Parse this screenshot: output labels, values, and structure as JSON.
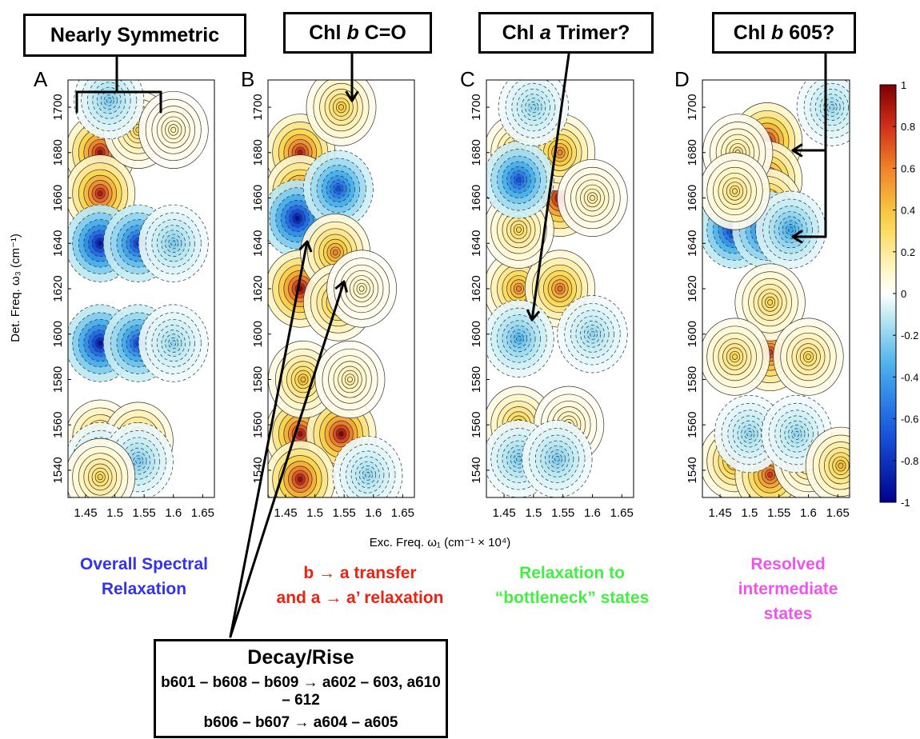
{
  "callouts": [
    {
      "id": "nearly",
      "text": "Nearly Symmetric"
    },
    {
      "id": "chlb_co",
      "pre": "Chl ",
      "it": "b",
      "post": " C=O"
    },
    {
      "id": "trimer",
      "pre": "Chl ",
      "it": "a",
      "post": " Trimer?"
    },
    {
      "id": "chlb605",
      "pre": "Chl ",
      "it": "b",
      "post": " 605?"
    }
  ],
  "captions": [
    {
      "text": "Overall Spectral\nRelaxation",
      "color": "#3333ee"
    },
    {
      "text": "b → a transfer\nand a → a’ relaxation",
      "color": "#ee2211"
    },
    {
      "text": "Relaxation to\n“bottleneck” states",
      "color": "#44ee44"
    },
    {
      "text": "Resolved\nintermediate\nstates",
      "color": "#ee55ee"
    }
  ],
  "decay_box": {
    "title": "Decay/Rise",
    "line1": "b601 – b608 – b609 → a602 – 603, a610 – 612",
    "line2": "b606 – b607 → a604 – a605"
  },
  "chart_data": {
    "type": "heatmap",
    "panels": [
      {
        "label": "A",
        "peaks": [
          [
            1.475,
            1680,
            0.95
          ],
          [
            1.475,
            1662,
            0.9
          ],
          [
            1.475,
            1640,
            -0.95
          ],
          [
            1.54,
            1640,
            -0.8
          ],
          [
            1.475,
            1596,
            -0.95
          ],
          [
            1.54,
            1596,
            -0.75
          ],
          [
            1.475,
            1554,
            0.5
          ],
          [
            1.54,
            1553,
            0.55
          ],
          [
            1.54,
            1690,
            0.35
          ],
          [
            1.49,
            1703,
            -0.25
          ],
          [
            1.475,
            1544,
            -0.25
          ],
          [
            1.54,
            1544,
            -0.25
          ],
          [
            1.475,
            1537,
            0.35
          ],
          [
            1.6,
            1640,
            -0.25
          ],
          [
            1.6,
            1596,
            -0.2
          ],
          [
            1.6,
            1690,
            0.15
          ]
        ]
      },
      {
        "label": "B",
        "peaks": [
          [
            1.475,
            1680,
            0.9
          ],
          [
            1.475,
            1662,
            0.85
          ],
          [
            1.47,
            1651,
            -0.95
          ],
          [
            1.54,
            1664,
            -0.7
          ],
          [
            1.475,
            1620,
            1.0
          ],
          [
            1.535,
            1636,
            0.6
          ],
          [
            1.54,
            1614,
            0.55
          ],
          [
            1.475,
            1556,
            0.95
          ],
          [
            1.545,
            1556,
            1.0
          ],
          [
            1.475,
            1536,
            0.95
          ],
          [
            1.545,
            1700,
            0.4
          ],
          [
            1.48,
            1580,
            0.45
          ],
          [
            1.56,
            1580,
            0.2
          ],
          [
            1.58,
            1620,
            0.15
          ],
          [
            1.59,
            1538,
            -0.2
          ]
        ]
      },
      {
        "label": "C",
        "peaks": [
          [
            1.545,
            1660,
            1.0
          ],
          [
            1.475,
            1680,
            0.4
          ],
          [
            1.545,
            1680,
            0.6
          ],
          [
            1.475,
            1620,
            0.6
          ],
          [
            1.545,
            1620,
            0.65
          ],
          [
            1.475,
            1646,
            0.35
          ],
          [
            1.475,
            1598,
            -0.35
          ],
          [
            1.475,
            1668,
            -0.7
          ],
          [
            1.475,
            1560,
            0.45
          ],
          [
            1.56,
            1560,
            0.2
          ],
          [
            1.475,
            1545,
            -0.25
          ],
          [
            1.54,
            1545,
            -0.25
          ],
          [
            1.6,
            1600,
            -0.2
          ],
          [
            1.5,
            1700,
            -0.2
          ],
          [
            1.6,
            1660,
            0.2
          ]
        ]
      },
      {
        "label": "D",
        "peaks": [
          [
            1.53,
            1685,
            0.9
          ],
          [
            1.53,
            1668,
            0.8
          ],
          [
            1.53,
            1656,
            0.75
          ],
          [
            1.475,
            1646,
            -0.9
          ],
          [
            1.53,
            1646,
            -0.8
          ],
          [
            1.57,
            1646,
            -0.4
          ],
          [
            1.535,
            1592,
            0.8
          ],
          [
            1.535,
            1614,
            0.35
          ],
          [
            1.475,
            1590,
            0.35
          ],
          [
            1.6,
            1590,
            0.35
          ],
          [
            1.475,
            1544,
            0.55
          ],
          [
            1.535,
            1538,
            0.8
          ],
          [
            1.6,
            1544,
            0.35
          ],
          [
            1.48,
            1680,
            0.25
          ],
          [
            1.475,
            1663,
            0.3
          ],
          [
            1.5,
            1556,
            -0.2
          ],
          [
            1.58,
            1556,
            -0.2
          ],
          [
            1.655,
            1542,
            0.45
          ],
          [
            1.64,
            1700,
            -0.2
          ]
        ]
      }
    ],
    "xlabel": "Exc. Freq. ω₁ (cm⁻¹ × 10⁴)",
    "ylabel": "Det. Freq. ω₃ (cm⁻¹)",
    "xlim": [
      1.42,
      1.67
    ],
    "ylim": [
      1528,
      1712
    ],
    "xticks": [
      1.45,
      1.5,
      1.55,
      1.6,
      1.65
    ],
    "xtick_labels": [
      "1.45",
      "1.5",
      "1.55",
      "1.6",
      "1.65"
    ],
    "yticks": [
      1540,
      1560,
      1580,
      1600,
      1620,
      1640,
      1660,
      1680,
      1700
    ],
    "colorbar": {
      "range": [
        -1,
        1
      ],
      "ticks": [
        1,
        0.8,
        0.6,
        0.4,
        0.2,
        0,
        -0.2,
        -0.4,
        -0.6,
        -0.8,
        -1
      ],
      "tick_labels": [
        "1",
        "0.8",
        "0.6",
        "0.4",
        "0.2",
        "0",
        "-0.2",
        "-0.4",
        "-0.6",
        "-0.8",
        "-1"
      ]
    }
  }
}
